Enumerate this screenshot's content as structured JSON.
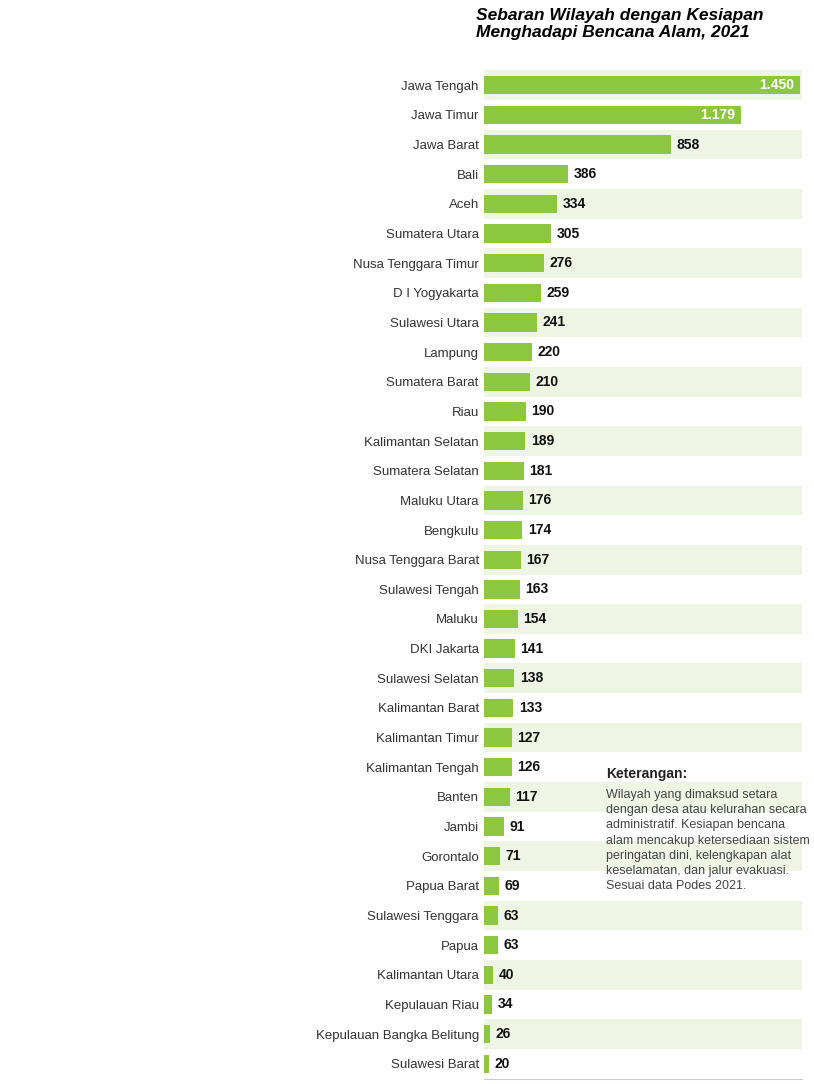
{
  "chart_data": {
    "type": "bar",
    "orientation": "horizontal",
    "title": "Sebaran Wilayah dengan Kesiapan Menghadapi Bencana Alam, 2021",
    "categories": [
      "Jawa Tengah",
      "Jawa Timur",
      "Jawa Barat",
      "Bali",
      "Aceh",
      "Sumatera Utara",
      "Nusa Tenggara Timur",
      "D I Yogyakarta",
      "Sulawesi Utara",
      "Lampung",
      "Sumatera Barat",
      "Riau",
      "Kalimantan Selatan",
      "Sumatera Selatan",
      "Maluku Utara",
      "Bengkulu",
      "Nusa Tenggara Barat",
      "Sulawesi Tengah",
      "Maluku",
      "DKI Jakarta",
      "Sulawesi Selatan",
      "Kalimantan Barat",
      "Kalimantan Timur",
      "Kalimantan Tengah",
      "Banten",
      "Jambi",
      "Gorontalo",
      "Papua Barat",
      "Sulawesi Tenggara",
      "Papua",
      "Kalimantan Utara",
      "Kepulauan Riau",
      "Kepulauan Bangka Belitung",
      "Sulawesi Barat"
    ],
    "values": [
      1450,
      1179,
      858,
      386,
      334,
      305,
      276,
      259,
      241,
      220,
      210,
      190,
      189,
      181,
      176,
      174,
      167,
      163,
      154,
      141,
      138,
      133,
      127,
      126,
      117,
      91,
      71,
      69,
      63,
      63,
      40,
      34,
      26,
      20
    ],
    "value_labels": [
      "1.450",
      "1.179",
      "858",
      "386",
      "334",
      "305",
      "276",
      "259",
      "241",
      "220",
      "210",
      "190",
      "189",
      "181",
      "176",
      "174",
      "167",
      "163",
      "154",
      "141",
      "138",
      "133",
      "127",
      "126",
      "117",
      "91",
      "71",
      "69",
      "63",
      "63",
      "40",
      "34",
      "26",
      "20"
    ],
    "color": "#8dc63f",
    "xlim": [
      0,
      1460
    ],
    "xticks": [],
    "data_labels": true,
    "tick_labels": "y",
    "grid": false,
    "annotations": [
      "Keterangan:",
      "Wilayah yang dimaksud setara dengan desa atau kelurahan secara administratif. Kesiapan bencana alam mencakup ketersediaan sistem peringatan dini, kelengkapan alat keselamatan, dan jalur evakuasi. Sesuai data Podes 2021."
    ]
  }
}
